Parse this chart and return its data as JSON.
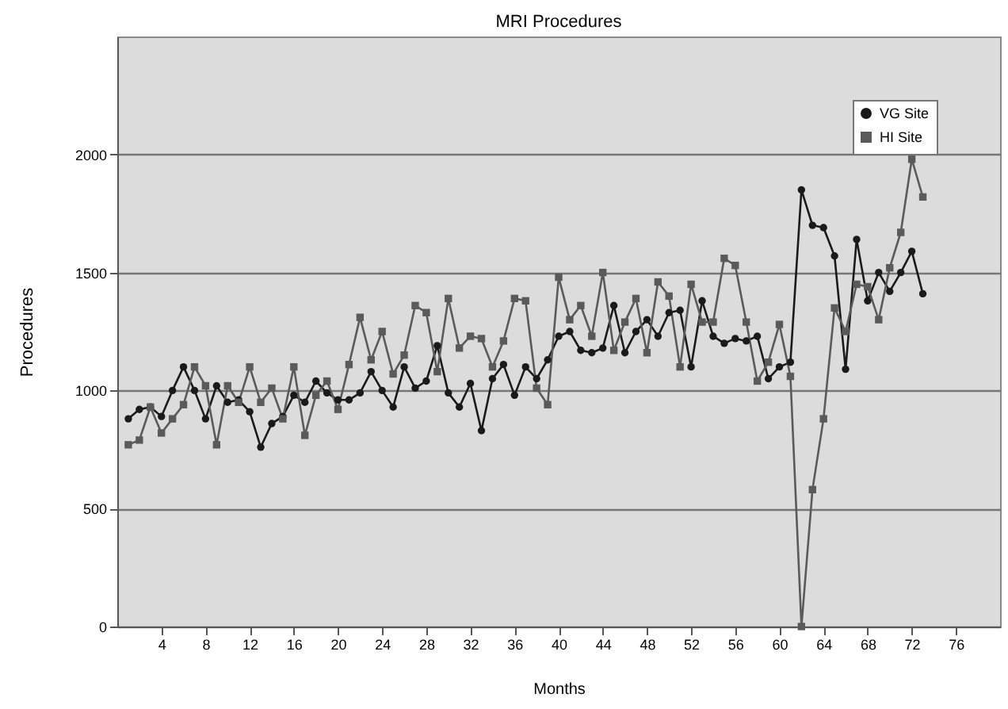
{
  "chart_data": {
    "type": "line",
    "title": "MRI Procedures",
    "xlabel": "Months",
    "ylabel": "Procedures",
    "xlim": [
      0,
      80
    ],
    "xticks": [
      4,
      8,
      12,
      16,
      20,
      24,
      28,
      32,
      36,
      40,
      44,
      48,
      52,
      56,
      60,
      64,
      68,
      72,
      76
    ],
    "ylim": [
      0,
      2500
    ],
    "yticks": [
      0,
      500,
      1000,
      1500,
      2000
    ],
    "grid": "y",
    "legend": "top right",
    "line_style": "solid",
    "x": [
      1,
      2,
      3,
      4,
      5,
      6,
      7,
      8,
      9,
      10,
      11,
      12,
      13,
      14,
      15,
      16,
      17,
      18,
      19,
      20,
      21,
      22,
      23,
      24,
      25,
      26,
      27,
      28,
      29,
      30,
      31,
      32,
      33,
      34,
      35,
      36,
      37,
      38,
      39,
      40,
      41,
      42,
      43,
      44,
      45,
      46,
      47,
      48,
      49,
      50,
      51,
      52,
      53,
      54,
      55,
      56,
      57,
      58,
      59,
      60,
      61,
      62,
      63,
      64,
      65,
      66,
      67,
      68,
      69,
      70,
      71,
      72,
      73
    ],
    "series": [
      {
        "name": "VG Site",
        "color": "#1a1a1a",
        "marker": "circle",
        "values": [
          880,
          920,
          930,
          890,
          1000,
          1100,
          1000,
          880,
          1020,
          950,
          960,
          910,
          760,
          860,
          890,
          980,
          950,
          1040,
          990,
          960,
          960,
          990,
          1080,
          1000,
          930,
          1100,
          1010,
          1040,
          1190,
          990,
          930,
          1030,
          830,
          1050,
          1110,
          980,
          1100,
          1050,
          1130,
          1230,
          1250,
          1170,
          1160,
          1180,
          1360,
          1160,
          1250,
          1300,
          1230,
          1330,
          1340,
          1100,
          1380,
          1230,
          1200,
          1220,
          1210,
          1230,
          1050,
          1100,
          1120,
          1850,
          1700,
          1690,
          1570,
          1090,
          1640,
          1380,
          1500,
          1420,
          1500,
          1590,
          1410
        ]
      },
      {
        "name": "HI Site",
        "color": "#5a5a5a",
        "marker": "square",
        "values": [
          770,
          790,
          930,
          820,
          880,
          940,
          1100,
          1020,
          770,
          1020,
          950,
          1100,
          950,
          1010,
          880,
          1100,
          810,
          980,
          1040,
          920,
          1110,
          1310,
          1130,
          1250,
          1070,
          1150,
          1360,
          1330,
          1080,
          1390,
          1180,
          1230,
          1220,
          1100,
          1210,
          1390,
          1380,
          1010,
          940,
          1480,
          1300,
          1360,
          1230,
          1500,
          1170,
          1290,
          1390,
          1160,
          1460,
          1400,
          1100,
          1450,
          1290,
          1290,
          1560,
          1530,
          1290,
          1040,
          1120,
          1280,
          1060,
          0,
          580,
          880,
          1350,
          1250,
          1450,
          1440,
          1300,
          1520,
          1670,
          1980,
          1820
        ]
      }
    ]
  }
}
